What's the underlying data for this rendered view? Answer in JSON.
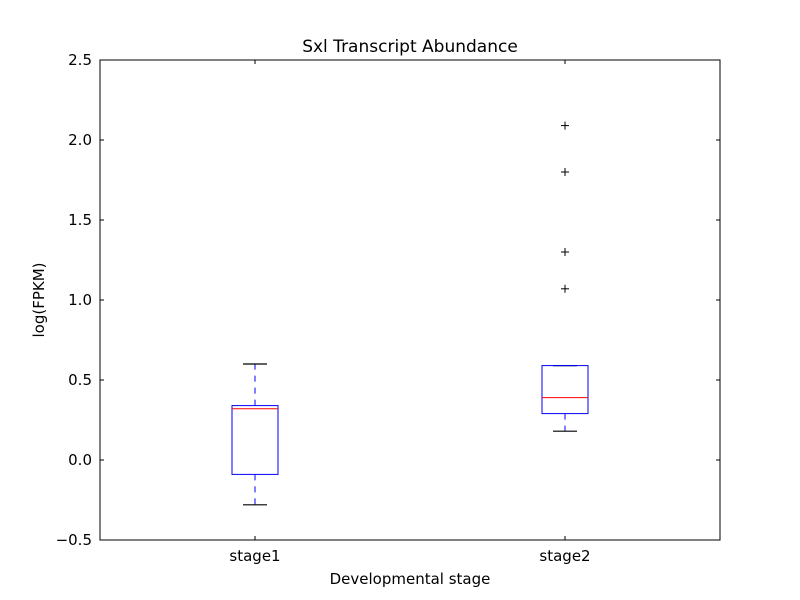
{
  "chart_data": {
    "type": "box",
    "title": "Sxl Transcript Abundance",
    "xlabel": "Developmental stage",
    "ylabel": "log(FPKM)",
    "ylim": [
      -0.5,
      2.5
    ],
    "yticks": [
      -0.5,
      0.0,
      0.5,
      1.0,
      1.5,
      2.0,
      2.5
    ],
    "ytick_labels": [
      "−0.5",
      "0.0",
      "0.5",
      "1.0",
      "1.5",
      "2.0",
      "2.5"
    ],
    "categories": [
      "stage1",
      "stage2"
    ],
    "boxes": [
      {
        "whisker_low": -0.28,
        "q1": -0.09,
        "median": 0.32,
        "q3": 0.34,
        "whisker_high": 0.6,
        "outliers": []
      },
      {
        "whisker_low": 0.18,
        "q1": 0.29,
        "median": 0.39,
        "q3": 0.59,
        "whisker_high": 0.59,
        "outliers": [
          1.07,
          1.3,
          1.8,
          2.09
        ]
      }
    ],
    "colors": {
      "box": "#0000ff",
      "median": "#ff0000",
      "cap": "#000000",
      "flier": "#000000"
    },
    "grid": false
  }
}
